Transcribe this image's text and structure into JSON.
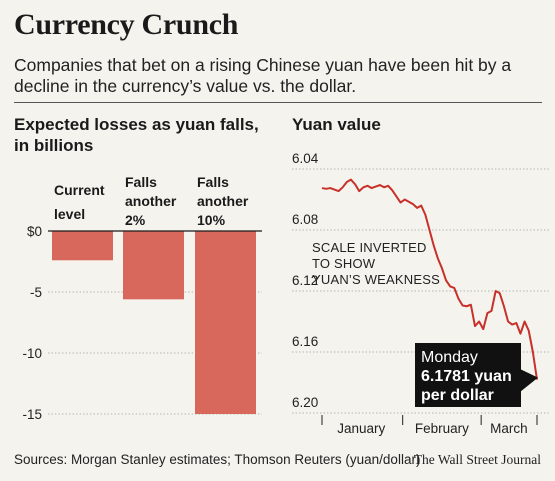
{
  "header": {
    "title": "Currency Crunch",
    "subtitle": "Companies that bet on a rising Chinese yuan have been hit by a decline in the currency’s value vs. the dollar."
  },
  "footer": {
    "source": "Sources: Morgan Stanley estimates; Thomson Reuters (yuan/dollar)",
    "credit": "The Wall Street Journal"
  },
  "chart_data": [
    {
      "type": "bar",
      "title": "Expected losses as yuan falls, in billions",
      "categories": [
        "Current level",
        "Falls another 2%",
        "Falls another 10%"
      ],
      "category_lines": [
        [
          "Current",
          "level"
        ],
        [
          "Falls",
          "another",
          "2%"
        ],
        [
          "Falls",
          "another",
          "10%"
        ]
      ],
      "values": [
        -2.4,
        -5.6,
        -15.0
      ],
      "ylim": [
        -15,
        0
      ],
      "yticks": [
        0,
        -5,
        -10,
        -15
      ],
      "ytick_labels": [
        "$0",
        "-5",
        "-10",
        "-15"
      ],
      "grid": true,
      "color": "#d9685c"
    },
    {
      "type": "line",
      "title": "Yuan value",
      "y_inverted": true,
      "ylim": [
        6.04,
        6.2
      ],
      "yticks": [
        6.04,
        6.08,
        6.12,
        6.16,
        6.2
      ],
      "ytick_labels": [
        "6.04",
        "6.08",
        "6.12",
        "6.16",
        "6.20"
      ],
      "xlim": [
        0,
        52
      ],
      "x_ticks": [
        0,
        19.5,
        38.5,
        52
      ],
      "x_labels": [
        {
          "label": "January",
          "x": 9.5
        },
        {
          "label": "February",
          "x": 29
        },
        {
          "label": "March",
          "x": 45.2
        }
      ],
      "annotation": [
        "SCALE INVERTED",
        "TO SHOW",
        "YUAN’S WEAKNESS"
      ],
      "callout": {
        "lines": [
          "Monday",
          "6.1781 yuan",
          "per dollar"
        ],
        "value": 6.1781
      },
      "color": "#c8302a",
      "series": [
        {
          "x": [
            0,
            1,
            2,
            3,
            4,
            5,
            6,
            7,
            8,
            9,
            10,
            11,
            12,
            13,
            14,
            15,
            16,
            17,
            18,
            19,
            20,
            21,
            22,
            23,
            24,
            25,
            26,
            27,
            28,
            29,
            30,
            31,
            32,
            33,
            34,
            35,
            36,
            37,
            38,
            39,
            40,
            41,
            42,
            43,
            44,
            45,
            46,
            47,
            48,
            49,
            50,
            51,
            52
          ],
          "y": [
            6.0525,
            6.053,
            6.0525,
            6.0535,
            6.0545,
            6.052,
            6.0485,
            6.047,
            6.05,
            6.0545,
            6.052,
            6.051,
            6.0525,
            6.0515,
            6.0505,
            6.052,
            6.051,
            6.054,
            6.058,
            6.062,
            6.06,
            6.0615,
            6.063,
            6.0655,
            6.064,
            6.07,
            6.08,
            6.09,
            6.0985,
            6.105,
            6.113,
            6.117,
            6.118,
            6.125,
            6.1295,
            6.13,
            6.129,
            6.143,
            6.14,
            6.145,
            6.1345,
            6.133,
            6.12,
            6.1215,
            6.13,
            6.14,
            6.142,
            6.141,
            6.148,
            6.14,
            6.146,
            6.16,
            6.1781
          ]
        }
      ]
    }
  ]
}
